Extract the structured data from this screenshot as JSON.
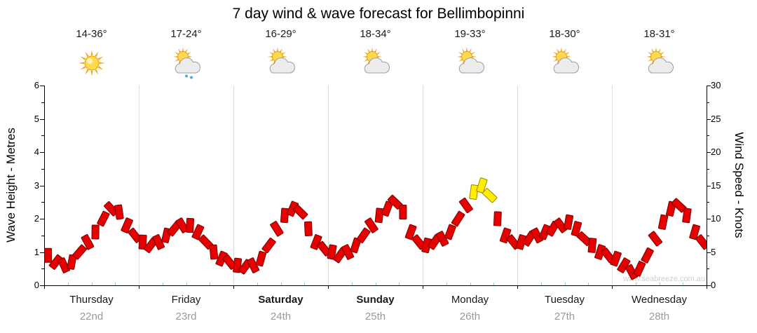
{
  "title": "7 day wind & wave forecast for Bellimbopinni",
  "axes": {
    "left_label": "Wave Height - Metres",
    "right_label": "Wind Speed - Knots",
    "left_ticks": [
      0,
      1,
      2,
      3,
      4,
      5,
      6
    ],
    "right_ticks": [
      0,
      5,
      10,
      15,
      20,
      25,
      30
    ]
  },
  "days": [
    {
      "name": "Thursday",
      "date": "22nd",
      "temp": "14-36°",
      "icon": "sunny-icon",
      "bold": false
    },
    {
      "name": "Friday",
      "date": "23rd",
      "temp": "17-24°",
      "icon": "partly-cloudy-rain-icon",
      "bold": false
    },
    {
      "name": "Saturday",
      "date": "24th",
      "temp": "16-29°",
      "icon": "partly-cloudy-icon",
      "bold": true
    },
    {
      "name": "Sunday",
      "date": "25th",
      "temp": "18-34°",
      "icon": "partly-cloudy-icon",
      "bold": true
    },
    {
      "name": "Monday",
      "date": "26th",
      "temp": "19-33°",
      "icon": "partly-cloudy-icon",
      "bold": false
    },
    {
      "name": "Tuesday",
      "date": "27th",
      "temp": "18-30°",
      "icon": "partly-cloudy-icon",
      "bold": false
    },
    {
      "name": "Wednesday",
      "date": "28th",
      "temp": "18-31°",
      "icon": "partly-cloudy-icon",
      "bold": false
    }
  ],
  "watermark": "www.seabreeze.com.au",
  "colors": {
    "barb": "#e60000",
    "barb_outline": "#7a0000",
    "barb_strong": "#ffee00",
    "barb_strong_outline": "#a08000",
    "day_grid": "#dcdcdc",
    "minor_tick_teal": "#7ccfd8"
  },
  "chart_data": {
    "type": "scatter",
    "title": "7 day wind & wave forecast for Bellimbopinni",
    "x_axis": {
      "days": [
        "Thursday 22nd",
        "Friday 23rd",
        "Saturday 24th",
        "Sunday 25th",
        "Monday 26th",
        "Tuesday 27th",
        "Wednesday 28th"
      ],
      "points_per_day": 12,
      "interval_hours": 2
    },
    "y_axis_left": {
      "label": "Wave Height - Metres",
      "range": [
        0,
        6
      ]
    },
    "y_axis_right": {
      "label": "Wind Speed - Knots",
      "range": [
        0,
        30
      ]
    },
    "legend": "none",
    "grid": "vertical lines at day boundaries",
    "strong_wind_threshold_knots": 13.5,
    "series": [
      {
        "name": "Wind speed (knots)",
        "marker": "wind-barb",
        "values": [
          4.5,
          3.5,
          3,
          3.5,
          5,
          6.5,
          8,
          10,
          11.5,
          11,
          9,
          7.5,
          6.5,
          6,
          6.5,
          7.5,
          8.5,
          9,
          9,
          8,
          6.5,
          5,
          4,
          3.5,
          3,
          2.8,
          3,
          4,
          6,
          8.5,
          10.5,
          11.5,
          11,
          8.5,
          6.5,
          5.5,
          5,
          4.5,
          5,
          6,
          7.5,
          9,
          10.5,
          11.5,
          12.5,
          11,
          8,
          6.5,
          6,
          6.5,
          7,
          8,
          10,
          12,
          14,
          15,
          13.5,
          10,
          7.5,
          6.5,
          6.5,
          7,
          7.5,
          8,
          8.5,
          9,
          9.5,
          8.5,
          7,
          6,
          5,
          4.5,
          4,
          3,
          2,
          2.5,
          4.5,
          7,
          9.5,
          11.5,
          12,
          10.5,
          8,
          6.5
        ]
      }
    ]
  }
}
